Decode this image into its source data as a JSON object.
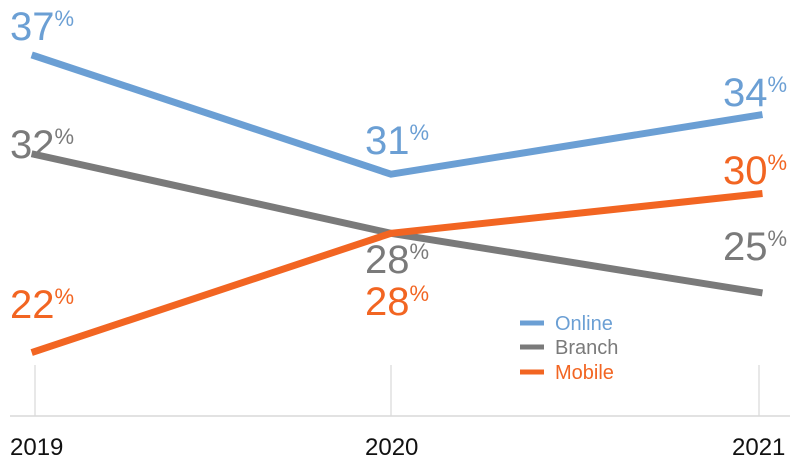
{
  "chart_data": {
    "type": "line",
    "categories": [
      "2019",
      "2020",
      "2021"
    ],
    "series": [
      {
        "name": "Online",
        "color": "#6b9fd4",
        "values": [
          37,
          31,
          34
        ],
        "labels": [
          "37",
          "31",
          "34"
        ]
      },
      {
        "name": "Branch",
        "color": "#7a7a7a",
        "values": [
          32,
          28,
          25
        ],
        "labels": [
          "32",
          "28",
          "25"
        ]
      },
      {
        "name": "Mobile",
        "color": "#f26522",
        "values": [
          22,
          28,
          30
        ],
        "labels": [
          "22",
          "28",
          "30"
        ]
      }
    ],
    "value_suffix": "%",
    "ylim": [
      20,
      38
    ],
    "grid": false,
    "legend": "bottom-right"
  }
}
